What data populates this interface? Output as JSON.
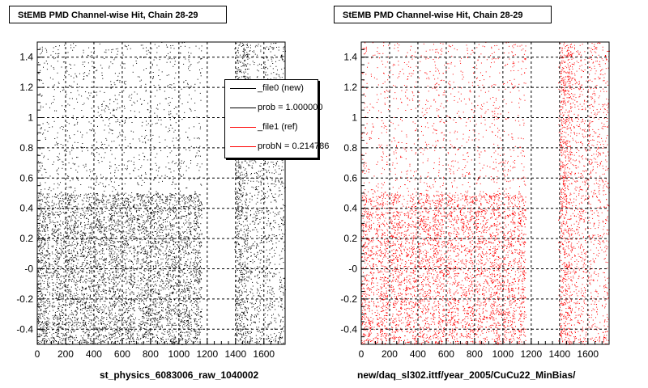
{
  "chart_data": [
    {
      "type": "scatter",
      "title": "StEMB PMD Channel-wise Hit, Chain 28-29",
      "xlabel": "st_physics_6083006_raw_1040002",
      "ylabel": "",
      "xlim": [
        0,
        1750
      ],
      "ylim": [
        -0.5,
        1.5
      ],
      "x_ticks": [
        "0",
        "200",
        "400",
        "600",
        "800",
        "1000",
        "1200",
        "1400",
        "1600"
      ],
      "y_ticks": [
        "-0.4",
        "-0.2",
        "-0",
        "0.2",
        "0.4",
        "0.6",
        "0.8",
        "1",
        "1.2",
        "1.4"
      ],
      "grid": true,
      "marker_color": "#000000",
      "series": [
        {
          "x_range": [
            0,
            1160
          ],
          "y_range": [
            -0.5,
            0.5
          ],
          "density": "high"
        },
        {
          "x_range": [
            0,
            1160
          ],
          "y_range": [
            0.5,
            1.5
          ],
          "density": "low"
        },
        {
          "x_range": [
            1390,
            1500
          ],
          "y_range": [
            -0.5,
            1.5
          ],
          "density": "high"
        },
        {
          "x_range": [
            1500,
            1750
          ],
          "y_range": [
            -0.5,
            1.5
          ],
          "density": "medium"
        }
      ],
      "legend": {
        "placement": "top-right",
        "entries": [
          {
            "label": "_file0 (new)",
            "color": "#000000"
          },
          {
            "label": "prob = 1.000000",
            "color": "#000000"
          },
          {
            "label": "_file1 (ref)",
            "color": "#ff0000"
          },
          {
            "label": "probN = 0.214786",
            "color": "#ff0000"
          }
        ]
      }
    },
    {
      "type": "scatter",
      "title": "StEMB PMD Channel-wise Hit, Chain 28-29",
      "xlabel": "new/daq_sl302.ittf/year_2005/CuCu22_MinBias/",
      "ylabel": "",
      "xlim": [
        0,
        1750
      ],
      "ylim": [
        -0.5,
        1.5
      ],
      "x_ticks": [
        "0",
        "200",
        "400",
        "600",
        "800",
        "1000",
        "1200",
        "1400",
        "1600"
      ],
      "y_ticks": [
        "-0.4",
        "-0.2",
        "-0",
        "0.2",
        "0.4",
        "0.6",
        "0.8",
        "1",
        "1.2",
        "1.4"
      ],
      "grid": true,
      "marker_color": "#ff0000",
      "series": [
        {
          "x_range": [
            0,
            1160
          ],
          "y_range": [
            -0.5,
            0.5
          ],
          "density": "high"
        },
        {
          "x_range": [
            0,
            1160
          ],
          "y_range": [
            0.5,
            1.5
          ],
          "density": "low"
        },
        {
          "x_range": [
            1390,
            1500
          ],
          "y_range": [
            -0.5,
            1.5
          ],
          "density": "high"
        },
        {
          "x_range": [
            1500,
            1750
          ],
          "y_range": [
            -0.5,
            1.5
          ],
          "density": "medium"
        }
      ]
    }
  ]
}
